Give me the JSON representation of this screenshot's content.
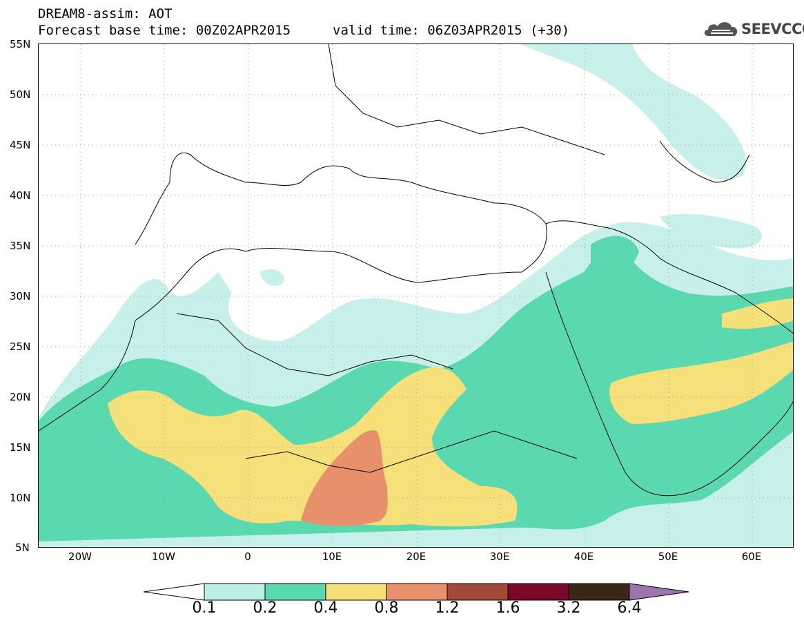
{
  "title": {
    "line1": "DREAM8-assim: AOT",
    "line2": "Forecast base time: 00Z02APR2015",
    "line2b": "valid time: 06Z03APR2015 (+30)"
  },
  "logo": {
    "text": "SEEVCCC",
    "icon": "cloud-icon"
  },
  "axes": {
    "lat_labels": [
      "55N",
      "50N",
      "45N",
      "40N",
      "35N",
      "30N",
      "25N",
      "20N",
      "15N",
      "10N",
      "5N"
    ],
    "lon_labels": [
      "20W",
      "10W",
      "0",
      "10E",
      "20E",
      "30E",
      "40E",
      "50E",
      "60E"
    ]
  },
  "colorbar": {
    "labels": [
      "0.1",
      "0.2",
      "0.4",
      "0.8",
      "1.2",
      "1.6",
      "3.2",
      "6.4"
    ],
    "colors": [
      "#ffffff",
      "#bdeee6",
      "#5ad9b0",
      "#f5e07a",
      "#e8906b",
      "#a24a3a",
      "#7a0a2a",
      "#3b2716",
      "#9b74b0"
    ]
  },
  "legend_colors": {
    "c1": "#c8f0ea",
    "c2": "#5ad9b0",
    "c3": "#f5e07a",
    "c4": "#e8906b"
  }
}
